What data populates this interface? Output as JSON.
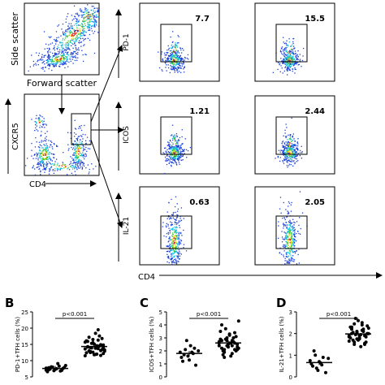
{
  "flow": {
    "scatter1": {
      "xlabel": "Forward scatter",
      "ylabel": "Side scatter"
    },
    "scatter2": {
      "xlabel": "CD4",
      "ylabel": "CXCR5"
    },
    "rows": [
      {
        "marker": "PD-1",
        "values": [
          "7.7",
          "15.5"
        ]
      },
      {
        "marker": "ICOS",
        "values": [
          "1.21",
          "2.44"
        ]
      },
      {
        "marker": "IL-21",
        "values": [
          "0.63",
          "2.05"
        ]
      }
    ],
    "bottom_xlabel": "CD4"
  },
  "colors": {
    "dot_blue": "#1a3fd6",
    "dot_cyan": "#19c3df",
    "dot_green": "#3fc13a",
    "dot_yellow": "#f2e21c",
    "dot_red": "#e0261f"
  },
  "chart_data": [
    {
      "type": "scatter",
      "panel": "B",
      "ylabel": "PD-1+TFH cells (%)",
      "ylim": [
        5,
        25
      ],
      "yticks": [
        "5",
        "10",
        "15",
        "20",
        "25"
      ],
      "p_text": "p<0.001",
      "series": [
        {
          "values": [
            7.7,
            7.2,
            8.1,
            6.9,
            7.5,
            8.3,
            7.0,
            7.9,
            6.6,
            7.4,
            8.0,
            7.3,
            9.1,
            6.8,
            7.6,
            8.5,
            7.1,
            7.8
          ]
        },
        {
          "values": [
            13.6,
            14.2,
            12.8,
            15.5,
            11.9,
            16.3,
            13.1,
            14.8,
            12.4,
            17.2,
            13.9,
            15.1,
            12.0,
            14.5,
            16.8,
            13.3,
            11.5,
            15.9,
            14.0,
            12.6,
            18.4,
            13.7,
            14.9,
            12.2,
            16.1,
            13.0,
            15.3,
            11.8,
            14.6,
            17.6,
            13.4,
            12.9,
            15.7,
            14.3,
            12.5,
            16.5,
            13.8,
            19.5,
            11.6,
            14.1
          ]
        }
      ]
    },
    {
      "type": "scatter",
      "panel": "C",
      "ylabel": "ICOS+TFH cells (%)",
      "ylim": [
        0,
        5
      ],
      "yticks": [
        "0",
        "1",
        "2",
        "3",
        "4",
        "5"
      ],
      "p_text": "p<0.001",
      "series": [
        {
          "values": [
            1.9,
            1.2,
            2.1,
            1.6,
            2.4,
            1.8,
            0.9,
            2.0,
            1.5,
            1.7,
            2.8,
            1.3,
            1.9,
            2.2
          ]
        },
        {
          "values": [
            2.4,
            2.8,
            2.1,
            3.0,
            2.6,
            1.8,
            3.4,
            2.3,
            2.9,
            2.0,
            3.7,
            2.5,
            1.6,
            2.7,
            3.1,
            2.2,
            2.6,
            4.0,
            1.9,
            2.4,
            3.2,
            2.8,
            2.1,
            2.5,
            3.5,
            1.7,
            2.9,
            2.3,
            2.6,
            3.0,
            2.0,
            4.3,
            2.7,
            2.2,
            1.5,
            2.8,
            3.3,
            2.4,
            2.6,
            2.1
          ]
        }
      ]
    },
    {
      "type": "scatter",
      "panel": "D",
      "ylabel": "IL-21+TFH cells (%)",
      "ylim": [
        0,
        3
      ],
      "yticks": [
        "0",
        "1",
        "2",
        "3"
      ],
      "p_text": "p<0.001",
      "series": [
        {
          "values": [
            0.75,
            0.5,
            1.0,
            0.3,
            0.65,
            0.9,
            0.2,
            0.85,
            0.6,
            1.2,
            0.4,
            0.7,
            0.55
          ]
        },
        {
          "values": [
            1.9,
            2.2,
            1.6,
            2.05,
            1.8,
            2.4,
            1.5,
            2.0,
            2.3,
            1.7,
            1.95,
            2.6,
            1.4,
            2.1,
            1.85,
            2.25,
            1.65,
            2.0,
            2.45,
            1.75,
            1.9,
            2.15,
            1.55,
            2.35,
            1.8,
            2.05,
            2.7,
            1.7,
            1.95,
            2.2,
            1.6,
            2.0,
            1.85,
            2.3,
            1.5,
            2.1,
            1.75,
            2.5,
            1.9,
            2.0
          ]
        }
      ]
    }
  ],
  "panel_letters": [
    "B",
    "C",
    "D"
  ]
}
